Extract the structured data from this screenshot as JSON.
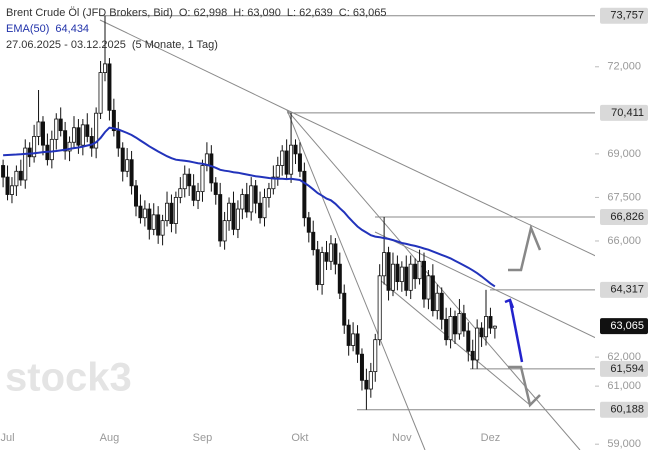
{
  "header": {
    "instrument": "Brent Crude Öl (JFD Brokers, Bid)",
    "open": "O: 62,998",
    "high": "H: 63,090",
    "low": "L: 62,639",
    "close": "C: 63,065",
    "period": "27.06.2025 - 03.12.2025",
    "span": "(5 Monate, 1 Tag)"
  },
  "watermark": "stock3",
  "chart_data": {
    "type": "candlestick",
    "up_color": "#ffffff",
    "down_color": "#111111",
    "open": [
      68600,
      68200,
      67600,
      67900,
      68400,
      68100,
      69200,
      68900,
      69600,
      70100,
      69300,
      68800,
      69500,
      70200,
      69800,
      69100,
      69400,
      69900,
      69300,
      70000,
      69600,
      69200,
      70400,
      71800,
      72100,
      70500,
      69800,
      69200,
      68400,
      68800,
      67900,
      67200,
      66800,
      67100,
      66400,
      66900,
      66200,
      66700,
      67300,
      66600,
      67500,
      67800,
      68300,
      67900,
      67400,
      67700,
      68600,
      69000,
      68000,
      67600,
      66000,
      66700,
      67300,
      66400,
      67100,
      67600,
      67000,
      67900,
      67300,
      66800,
      67500,
      67800,
      68200,
      68600,
      69100,
      68300,
      69300,
      69000,
      68400,
      66800,
      66300,
      65700,
      64500,
      65600,
      65300,
      65900,
      65200,
      64200,
      63100,
      62400,
      62800,
      62100,
      61200,
      60900,
      61500,
      62600,
      64800,
      65600,
      64300,
      65200,
      64600,
      65100,
      64300,
      65200,
      64700,
      65300,
      64000,
      64800,
      63600,
      64200,
      63300,
      62600,
      63400,
      62800,
      63500,
      62900,
      62200,
      61900,
      63000,
      62700,
      63400,
      62998
    ],
    "high": [
      68800,
      68600,
      68200,
      68600,
      68800,
      69500,
      69400,
      70000,
      71200,
      70300,
      69700,
      69800,
      70400,
      70600,
      70100,
      69600,
      70300,
      70200,
      70200,
      70400,
      69900,
      70600,
      72200,
      73757,
      72300,
      70900,
      70100,
      69400,
      69200,
      69100,
      68100,
      67600,
      67400,
      67300,
      67300,
      67200,
      66900,
      67700,
      67600,
      67700,
      68200,
      68600,
      68500,
      68300,
      68000,
      68800,
      69400,
      69300,
      68200,
      68000,
      67000,
      67500,
      67700,
      67400,
      67800,
      68000,
      68200,
      68100,
      67700,
      67800,
      68000,
      68600,
      68900,
      69300,
      69500,
      70411,
      69500,
      69400,
      68700,
      67000,
      66700,
      66000,
      65800,
      66000,
      66200,
      66100,
      65600,
      64500,
      63300,
      63200,
      63100,
      62300,
      61600,
      61800,
      62800,
      65200,
      66826,
      65800,
      65600,
      65500,
      65300,
      65500,
      65500,
      65400,
      65700,
      65600,
      65000,
      65200,
      64500,
      64400,
      63700,
      63700,
      63600,
      64000,
      63800,
      63200,
      62600,
      63300,
      63200,
      64317,
      63700,
      63090
    ],
    "low": [
      67850,
      67400,
      67300,
      67550,
      67900,
      67800,
      68550,
      68700,
      69300,
      68950,
      68600,
      68500,
      69150,
      69600,
      68800,
      68750,
      69200,
      69000,
      68950,
      69400,
      68900,
      68850,
      70200,
      71500,
      70150,
      69600,
      68900,
      68050,
      68200,
      67600,
      66850,
      66600,
      66500,
      66050,
      66200,
      65900,
      65850,
      66500,
      66300,
      66250,
      67300,
      67500,
      67550,
      67200,
      67100,
      67350,
      68400,
      67700,
      67250,
      65800,
      65700,
      66350,
      66200,
      66100,
      66750,
      66800,
      66700,
      66950,
      66600,
      66500,
      67150,
      67600,
      67900,
      68250,
      68100,
      68000,
      68650,
      68200,
      66500,
      65950,
      65500,
      64300,
      64150,
      65000,
      65000,
      64850,
      64000,
      62800,
      62050,
      62200,
      61800,
      60850,
      60188,
      60600,
      61150,
      62400,
      64500,
      63950,
      64100,
      64300,
      64250,
      64100,
      64000,
      64350,
      64500,
      63700,
      63650,
      63400,
      63300,
      62950,
      62400,
      62300,
      62450,
      62600,
      62700,
      61850,
      61594,
      61600,
      62350,
      62400,
      62800,
      62639
    ],
    "close": [
      68200,
      67600,
      67900,
      68400,
      68100,
      69200,
      68900,
      69600,
      70100,
      69300,
      68800,
      69500,
      70200,
      69800,
      69100,
      69400,
      69900,
      69300,
      70000,
      69600,
      69200,
      70400,
      71800,
      72100,
      70500,
      69800,
      69200,
      68400,
      68800,
      67900,
      67200,
      66800,
      67100,
      66400,
      66900,
      66200,
      66700,
      67300,
      66600,
      67500,
      67800,
      68300,
      67900,
      67400,
      67700,
      68600,
      69000,
      68000,
      67600,
      66000,
      66700,
      67300,
      66400,
      67100,
      67600,
      67000,
      67900,
      67300,
      66800,
      67500,
      67800,
      68200,
      68600,
      69100,
      68300,
      69300,
      69000,
      68400,
      66800,
      66300,
      65700,
      64500,
      65600,
      65300,
      65900,
      65200,
      64200,
      63100,
      62400,
      62800,
      62100,
      61200,
      60900,
      61500,
      62600,
      64800,
      65600,
      64300,
      65200,
      64600,
      65100,
      64300,
      65200,
      64700,
      65300,
      64000,
      64800,
      63600,
      64200,
      63300,
      62600,
      63400,
      62800,
      63500,
      62900,
      62200,
      61900,
      63000,
      62700,
      63400,
      63000,
      63065
    ],
    "ema": {
      "name": "EMA(50)",
      "value_label": "64,434",
      "color": "#2233bb",
      "values": [
        68950,
        68960,
        68970,
        68980,
        68990,
        69000,
        69010,
        69020,
        69040,
        69060,
        69070,
        69080,
        69100,
        69120,
        69140,
        69170,
        69200,
        69220,
        69250,
        69290,
        69320,
        69400,
        69550,
        69750,
        69900,
        69880,
        69840,
        69780,
        69720,
        69650,
        69560,
        69460,
        69360,
        69260,
        69170,
        69080,
        69000,
        68920,
        68850,
        68800,
        68780,
        68760,
        68740,
        68710,
        68680,
        68660,
        68620,
        68580,
        68520,
        68450,
        68420,
        68400,
        68370,
        68350,
        68320,
        68290,
        68260,
        68230,
        68210,
        68190,
        68170,
        68150,
        68140,
        68140,
        68130,
        68140,
        68120,
        68100,
        68000,
        67900,
        67780,
        67650,
        67560,
        67460,
        67400,
        67280,
        67130,
        66990,
        66810,
        66650,
        66500,
        66380,
        66290,
        66200,
        66150,
        66130,
        66100,
        66070,
        66030,
        65980,
        65930,
        65900,
        65860,
        65830,
        65790,
        65740,
        65700,
        65640,
        65580,
        65520,
        65460,
        65400,
        65320,
        65240,
        65160,
        65080,
        64990,
        64890,
        64780,
        64660,
        64540,
        64434
      ]
    },
    "xlim": [
      -0.7,
      133.6
    ],
    "xticks": [
      {
        "value": 1,
        "label": "Jul"
      },
      {
        "value": 24,
        "label": "Aug"
      },
      {
        "value": 45,
        "label": "Sep"
      },
      {
        "value": 67,
        "label": "Okt"
      },
      {
        "value": 90,
        "label": "Nov"
      },
      {
        "value": 110,
        "label": "Dez"
      }
    ],
    "ylim": [
      58800,
      74300
    ],
    "yticks": [
      {
        "value": 59000,
        "label": "59,000"
      },
      {
        "value": 61000,
        "label": "61,000"
      },
      {
        "value": 62000,
        "label": "62,000"
      },
      {
        "value": 66000,
        "label": "66,000"
      },
      {
        "value": 67500,
        "label": "67,500"
      },
      {
        "value": 69000,
        "label": "69,000"
      },
      {
        "value": 72000,
        "label": "72,000"
      }
    ],
    "levels": [
      {
        "value": 73757,
        "label": "73,757"
      },
      {
        "value": 70411,
        "label": "70,411"
      },
      {
        "value": 66826,
        "label": "66,826"
      },
      {
        "value": 64317,
        "label": "64,317"
      },
      {
        "value": 61594,
        "label": "61,594"
      },
      {
        "value": 60188,
        "label": "60,188"
      }
    ],
    "last_price": {
      "value": 63065,
      "label": "63,065"
    }
  }
}
